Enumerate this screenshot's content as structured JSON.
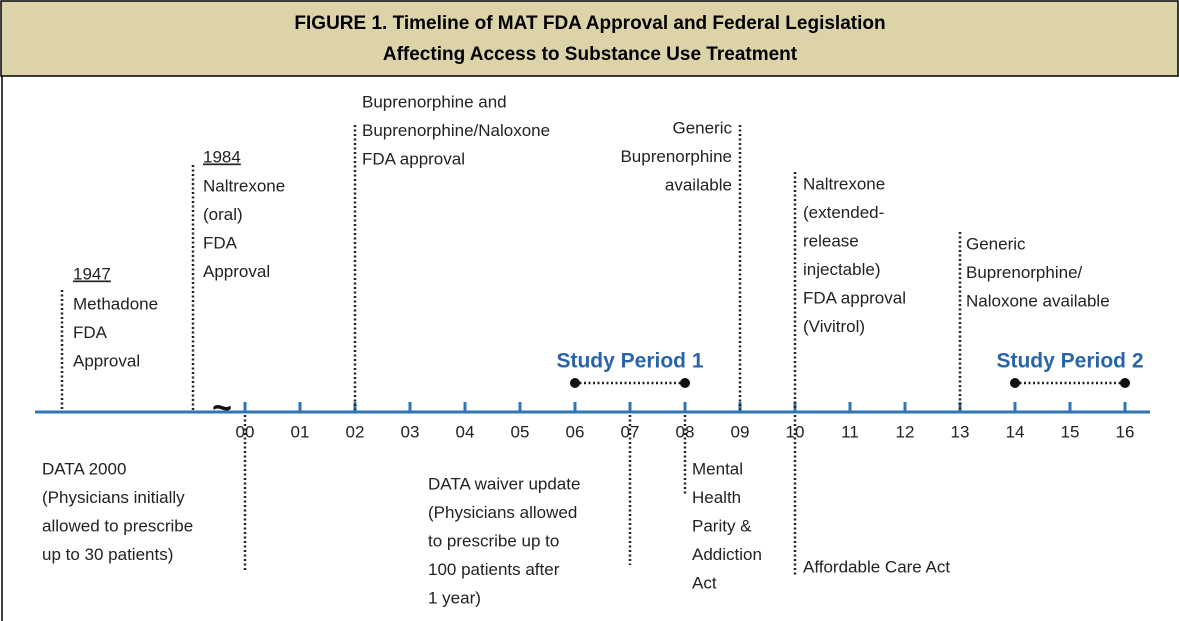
{
  "header": {
    "title_lines": [
      "FIGURE 1. Timeline of MAT FDA Approval and Federal Legislation",
      "Affecting Access to Substance Use Treatment"
    ]
  },
  "timeline": {
    "ticks": [
      "00",
      "01",
      "02",
      "03",
      "04",
      "05",
      "06",
      "07",
      "08",
      "09",
      "10",
      "11",
      "12",
      "13",
      "14",
      "15",
      "16"
    ],
    "study_periods": [
      {
        "label": "Study Period 1"
      },
      {
        "label": "Study Period 2"
      }
    ],
    "events_above": [
      {
        "year": "1947",
        "lines": [
          "Methadone",
          "FDA",
          "Approval"
        ]
      },
      {
        "year": "1984",
        "lines": [
          "Naltrexone",
          "(oral)",
          "FDA",
          "Approval"
        ]
      },
      {
        "lines": [
          "Buprenorphine and",
          "Buprenorphine/Naloxone",
          "FDA approval"
        ]
      },
      {
        "lines": [
          "Generic",
          "Buprenorphine",
          "available"
        ]
      },
      {
        "lines": [
          "Naltrexone",
          "(extended-",
          "release",
          "injectable)",
          "FDA approval",
          "(Vivitrol)"
        ]
      },
      {
        "lines": [
          "Generic",
          "Buprenorphine/",
          "Naloxone available"
        ]
      }
    ],
    "events_below": [
      {
        "lines": [
          "DATA 2000",
          "(Physicians initially",
          "allowed to prescribe",
          "up to 30 patients)"
        ]
      },
      {
        "lines": [
          "DATA waiver update",
          "(Physicians allowed",
          "to prescribe up to",
          "100 patients after",
          "1 year)"
        ]
      },
      {
        "lines": [
          "Mental",
          "Health",
          "Parity &",
          "Addiction",
          "Act"
        ]
      },
      {
        "lines": [
          "Affordable Care Act"
        ]
      }
    ]
  }
}
